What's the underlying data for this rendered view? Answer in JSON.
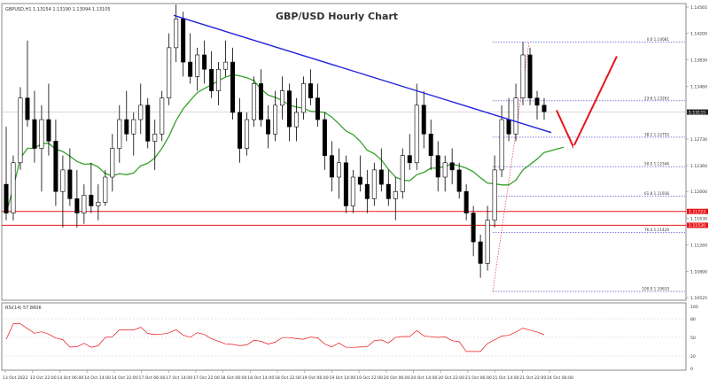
{
  "chart_data": [
    {
      "type": "candlestick",
      "title": "GBP/USD Hourly Chart",
      "symbol_info": "GBPUSD,H1  1.13154 1.13190 1.13094 1.13105",
      "y_axis_ticks": [
        "1.14565",
        "1.14200",
        "1.13830",
        "1.13460",
        "1.13100",
        "1.12730",
        "1.12360",
        "1.12000",
        "1.11630",
        "1.11260",
        "1.10890",
        "1.10525"
      ],
      "current_price": "1.13105",
      "x_axis_ticks": [
        "13 Oct 2022",
        "13 Oct 22:00",
        "14 Oct 06:00",
        "14 Oct 14:00",
        "14 Oct 22:00",
        "17 Oct 06:00",
        "17 Oct 14:00",
        "17 Oct 22:00",
        "18 Oct 06:00",
        "18 Oct 14:00",
        "18 Oct 22:00",
        "19 Oct 06:00",
        "19 Oct 14:00",
        "19 Oct 22:00",
        "20 Oct 06:00",
        "20 Oct 14:00",
        "20 Oct 22:00",
        "21 Oct 06:00",
        "21 Oct 14:00",
        "21 Oct 22:00",
        "24 Oct 06:00"
      ],
      "fib_levels": [
        {
          "label": "0.0  1.14081",
          "price": 1.14081
        },
        {
          "label": "23.6  1.13262",
          "price": 1.13262
        },
        {
          "label": "38.2  1.12755",
          "price": 1.12755
        },
        {
          "label": "50.0  1.12346",
          "price": 1.12346
        },
        {
          "label": "61.8  1.11936",
          "price": 1.11936
        },
        {
          "label": "76.4  1.11429",
          "price": 1.11429
        },
        {
          "label": "100.0  1.10610",
          "price": 1.1061
        }
      ],
      "support_levels": [
        {
          "label": "1.11723",
          "price": 1.11723
        },
        {
          "label": "1.11530",
          "price": 1.1153
        }
      ],
      "trend_line": {
        "start": [
          "17 Oct 09:00",
          1.1445
        ],
        "end": [
          "24 Oct 07:00",
          1.1282
        ]
      },
      "moving_average": {
        "name": "SMA",
        "color": "#34a12a"
      },
      "forecast_arrow": {
        "color": "#e8141a",
        "points": [
          [
            1.1313,
            "24 Oct 06:00"
          ],
          [
            1.1262,
            "24 Oct 10:00"
          ],
          [
            1.1388,
            "24 Oct 16:00"
          ]
        ]
      },
      "candles_ohlc_approx": [
        [
          1.121,
          1.129,
          1.116,
          1.117
        ],
        [
          1.117,
          1.125,
          1.116,
          1.124
        ],
        [
          1.124,
          1.1345,
          1.123,
          1.133
        ],
        [
          1.133,
          1.141,
          1.129,
          1.13
        ],
        [
          1.13,
          1.134,
          1.124,
          1.126
        ],
        [
          1.126,
          1.132,
          1.12,
          1.13
        ],
        [
          1.13,
          1.135,
          1.125,
          1.127
        ],
        [
          1.127,
          1.13,
          1.118,
          1.12
        ],
        [
          1.12,
          1.125,
          1.115,
          1.123
        ],
        [
          1.123,
          1.126,
          1.118,
          1.119
        ],
        [
          1.119,
          1.123,
          1.115,
          1.117
        ],
        [
          1.117,
          1.121,
          1.1155,
          1.1195
        ],
        [
          1.1195,
          1.124,
          1.117,
          1.118
        ],
        [
          1.118,
          1.121,
          1.116,
          1.1185
        ],
        [
          1.1185,
          1.123,
          1.118,
          1.122
        ],
        [
          1.122,
          1.128,
          1.12,
          1.126
        ],
        [
          1.126,
          1.132,
          1.124,
          1.13
        ],
        [
          1.13,
          1.134,
          1.127,
          1.128
        ],
        [
          1.128,
          1.131,
          1.125,
          1.13
        ],
        [
          1.13,
          1.135,
          1.128,
          1.132
        ],
        [
          1.132,
          1.133,
          1.126,
          1.127
        ],
        [
          1.127,
          1.13,
          1.123,
          1.128
        ],
        [
          1.128,
          1.134,
          1.127,
          1.133
        ],
        [
          1.133,
          1.142,
          1.132,
          1.14
        ],
        [
          1.14,
          1.146,
          1.138,
          1.144
        ],
        [
          1.144,
          1.145,
          1.136,
          1.138
        ],
        [
          1.138,
          1.142,
          1.135,
          1.136
        ],
        [
          1.136,
          1.14,
          1.134,
          1.139
        ],
        [
          1.139,
          1.141,
          1.135,
          1.137
        ],
        [
          1.137,
          1.1395,
          1.133,
          1.134
        ],
        [
          1.134,
          1.138,
          1.132,
          1.137
        ],
        [
          1.137,
          1.141,
          1.136,
          1.138
        ],
        [
          1.138,
          1.14,
          1.13,
          1.131
        ],
        [
          1.131,
          1.133,
          1.124,
          1.126
        ],
        [
          1.126,
          1.131,
          1.125,
          1.13
        ],
        [
          1.13,
          1.136,
          1.129,
          1.135
        ],
        [
          1.135,
          1.137,
          1.129,
          1.13
        ],
        [
          1.13,
          1.132,
          1.126,
          1.128
        ],
        [
          1.128,
          1.134,
          1.127,
          1.132
        ],
        [
          1.132,
          1.136,
          1.13,
          1.134
        ],
        [
          1.134,
          1.135,
          1.127,
          1.129
        ],
        [
          1.129,
          1.133,
          1.127,
          1.131
        ],
        [
          1.131,
          1.136,
          1.13,
          1.135
        ],
        [
          1.135,
          1.137,
          1.132,
          1.133
        ],
        [
          1.133,
          1.135,
          1.129,
          1.13
        ],
        [
          1.13,
          1.131,
          1.123,
          1.125
        ],
        [
          1.125,
          1.127,
          1.12,
          1.122
        ],
        [
          1.122,
          1.126,
          1.119,
          1.124
        ],
        [
          1.124,
          1.125,
          1.117,
          1.118
        ],
        [
          1.118,
          1.123,
          1.117,
          1.122
        ],
        [
          1.122,
          1.125,
          1.12,
          1.121
        ],
        [
          1.121,
          1.123,
          1.117,
          1.119
        ],
        [
          1.119,
          1.124,
          1.118,
          1.123
        ],
        [
          1.123,
          1.126,
          1.12,
          1.121
        ],
        [
          1.121,
          1.123,
          1.118,
          1.119
        ],
        [
          1.119,
          1.122,
          1.116,
          1.12
        ],
        [
          1.12,
          1.126,
          1.119,
          1.125
        ],
        [
          1.125,
          1.128,
          1.123,
          1.124
        ],
        [
          1.124,
          1.135,
          1.123,
          1.132
        ],
        [
          1.132,
          1.134,
          1.126,
          1.128
        ],
        [
          1.128,
          1.13,
          1.123,
          1.125
        ],
        [
          1.125,
          1.127,
          1.12,
          1.122
        ],
        [
          1.122,
          1.125,
          1.12,
          1.124
        ],
        [
          1.124,
          1.126,
          1.121,
          1.123
        ],
        [
          1.123,
          1.124,
          1.119,
          1.12
        ],
        [
          1.12,
          1.121,
          1.116,
          1.117
        ],
        [
          1.117,
          1.118,
          1.111,
          1.113
        ],
        [
          1.113,
          1.114,
          1.108,
          1.11
        ],
        [
          1.11,
          1.118,
          1.109,
          1.116
        ],
        [
          1.116,
          1.125,
          1.115,
          1.123
        ],
        [
          1.123,
          1.132,
          1.122,
          1.13
        ],
        [
          1.13,
          1.133,
          1.127,
          1.128
        ],
        [
          1.128,
          1.135,
          1.127,
          1.133
        ],
        [
          1.133,
          1.1408,
          1.132,
          1.139
        ],
        [
          1.139,
          1.14,
          1.132,
          1.133
        ],
        [
          1.133,
          1.134,
          1.13,
          1.132
        ],
        [
          1.132,
          1.133,
          1.13,
          1.1311
        ]
      ]
    },
    {
      "type": "line",
      "title": "RSI(14) 57.8606",
      "y_axis_ticks": [
        "100",
        "80",
        "50",
        "20",
        "0"
      ]
    }
  ]
}
